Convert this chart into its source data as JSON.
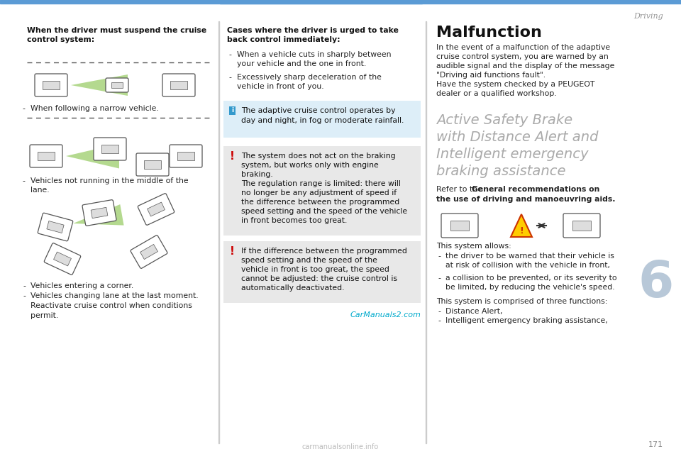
{
  "bg": "#ffffff",
  "header_color": "#5b9bd5",
  "header_text": "Driving",
  "page_num": "171",
  "watermark_bottom": "carmanualsonline.info",
  "watermark_mid": "CarManuals2.com",
  "watermark_mid_color": "#00aacc",
  "chapter_num": "6",
  "chapter_color": "#b8c8d8",
  "divider_color": "#cccccc",
  "left_title": "When the driver must suspend the cruise\ncontrol system:",
  "left_items": [
    "When following a narrow vehicle.",
    "Vehicles not running in the middle of the\nlane.",
    "Vehicles entering a corner.",
    "Vehicles changing lane at the last moment.\nReactivate cruise control when conditions\npermit."
  ],
  "mid_title_bold": "Cases where the driver is urged to take\nback control immediately:",
  "mid_items": [
    "When a vehicle cuts in sharply between\nyour vehicle and the one in front.",
    "Excessively sharp deceleration of the\nvehicle in front of you."
  ],
  "info_box_bg": "#ddeef8",
  "info_icon_color": "#3399cc",
  "info_text": "The adaptive cruise control operates by\nday and night, in fog or moderate rainfall.",
  "warn_box_bg": "#e8e8e8",
  "warn_icon_color": "#cc0000",
  "warn1_text": "The system does not act on the braking\nsystem, but works only with engine\nbraking.\nThe regulation range is limited: there will\nno longer be any adjustment of speed if\nthe difference between the programmed\nspeed setting and the speed of the vehicle\nin front becomes too great.",
  "warn2_text": "If the difference between the programmed\nspeed setting and the speed of the\nvehicle in front is too great, the speed\ncannot be adjusted: the cruise control is\nautomatically deactivated.",
  "malf_title": "Malfunction",
  "malf_text": "In the event of a malfunction of the adaptive\ncruise control system, you are warned by an\naudible signal and the display of the message\n\"Driving aid functions fault\".\nHave the system checked by a PEUGEOT\ndealer or a qualified workshop.",
  "section_title": "Active Safety Brake\nwith Distance Alert and\nIntelligent emergency\nbraking assistance",
  "section_title_color": "#aaaaaa",
  "refer_pre": "Refer to the ",
  "refer_bold": "General recommendations on\nthe use of driving and manoeuvring aids",
  "refer_end": ".",
  "sys_allows": "This system allows:",
  "sys_items": [
    "the driver to be warned that their vehicle is\nat risk of collision with the vehicle in front,",
    "a collision to be prevented, or its severity to\nbe limited, by reducing the vehicle's speed."
  ],
  "three_title": "This system is comprised of three functions:",
  "three_items": [
    "Distance Alert,",
    "Intelligent emergency braking assistance,"
  ]
}
